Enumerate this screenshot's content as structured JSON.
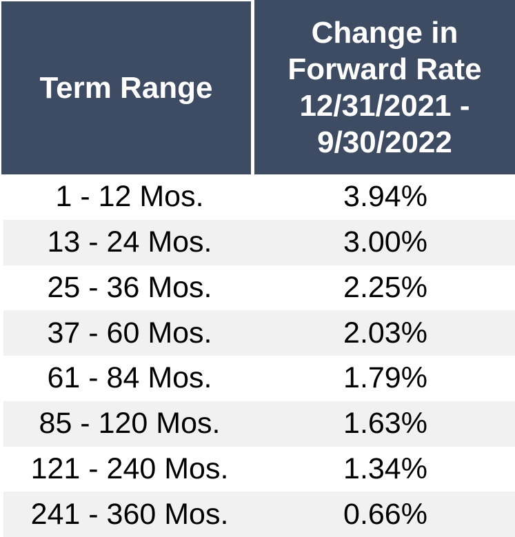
{
  "colors": {
    "header_bg": "#3D4B63",
    "header_text": "#FFFFFF",
    "stripe_bg": "#F1F1F1",
    "row_bg": "#FFFFFF",
    "body_text": "#000000"
  },
  "table": {
    "header": {
      "col1": "Term Range",
      "col2": "Change in Forward Rate 12/31/2021 - 9/30/2022",
      "col2_lines": [
        "Change in",
        "Forward Rate",
        "12/31/2021 -",
        "9/30/2022"
      ]
    },
    "rows": [
      {
        "term": "1 - 12 Mos.",
        "change": "3.94%"
      },
      {
        "term": "13 - 24 Mos.",
        "change": "3.00%"
      },
      {
        "term": "25 - 36 Mos.",
        "change": "2.25%"
      },
      {
        "term": "37 - 60 Mos.",
        "change": "2.03%"
      },
      {
        "term": "61 - 84 Mos.",
        "change": "1.79%"
      },
      {
        "term": "85 - 120 Mos.",
        "change": "1.63%"
      },
      {
        "term": "121 - 240 Mos.",
        "change": "1.34%"
      },
      {
        "term": "241 - 360 Mos.",
        "change": "0.66%"
      }
    ]
  },
  "chart_data": {
    "type": "table",
    "title": "Change in Forward Rate 12/31/2021 - 9/30/2022 by Term Range",
    "columns": [
      "Term Range",
      "Change in Forward Rate 12/31/2021 - 9/30/2022"
    ],
    "categories": [
      "1 - 12 Mos.",
      "13 - 24 Mos.",
      "25 - 36 Mos.",
      "37 - 60 Mos.",
      "61 - 84 Mos.",
      "85 - 120 Mos.",
      "121 - 240 Mos.",
      "241 - 360 Mos."
    ],
    "values_pct": [
      3.94,
      3.0,
      2.25,
      2.03,
      1.79,
      1.63,
      1.34,
      0.66
    ],
    "layout": {
      "header_style": "dark-navy",
      "zebra_striping": true,
      "legend": "none",
      "grid": false
    }
  }
}
